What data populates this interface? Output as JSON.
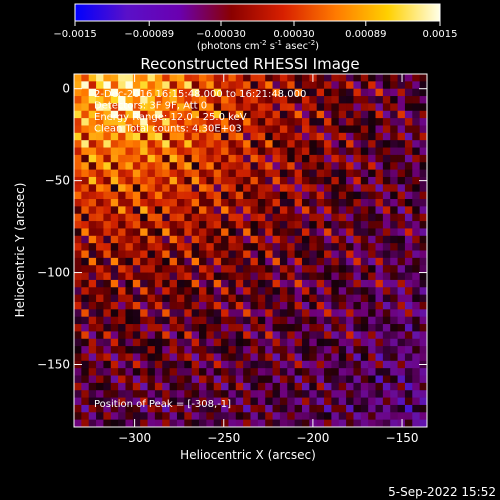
{
  "chart_data": {
    "type": "heatmap",
    "title": "Reconstructed RHESSI Image",
    "colorbar": {
      "ticks": [
        "-0.0015",
        "-0.00089",
        "-0.00030",
        "0.00030",
        "0.00089",
        "0.0015"
      ],
      "range": [
        -0.0015,
        0.0015
      ],
      "units_prefix": "(photons cm",
      "units_sup1": "-2",
      "units_mid1": " s",
      "units_sup2": "-1",
      "units_mid2": " asec",
      "units_sup3": "-2",
      "units_suffix": ")",
      "colors": [
        "#0000ff",
        "#5a10c8",
        "#6a00b0",
        "#8a0000",
        "#d82000",
        "#ff7a00",
        "#ffd000",
        "#ffffe8"
      ]
    },
    "xlabel": "Heliocentric X (arcsec)",
    "ylabel": "Heliocentric Y (arcsec)",
    "xlim": [
      -334,
      -136
    ],
    "ylim": [
      -184,
      8
    ],
    "xticks": [
      {
        "value": -300,
        "label": "−300"
      },
      {
        "value": -250,
        "label": "−250"
      },
      {
        "value": -200,
        "label": "−200"
      },
      {
        "value": -150,
        "label": "−150"
      }
    ],
    "yticks": [
      {
        "value": 0,
        "label": "0"
      },
      {
        "value": -50,
        "label": "−50"
      },
      {
        "value": -100,
        "label": "−100"
      },
      {
        "value": -150,
        "label": "−150"
      }
    ],
    "annotations": [
      "2-Dec-2016 16:15:48.000 to 16:21:48.000",
      "Detectors: 3F 9F, Att 0",
      "Energy Range: 12.0 - 25.0 keV",
      "Clean    Total counts: 4.30E+03"
    ],
    "peak_label": "Position of Peak = [-308,-1]",
    "peak": [
      -308,
      -1
    ]
  },
  "footer": {
    "date": "5-Sep-2022 15:52"
  }
}
